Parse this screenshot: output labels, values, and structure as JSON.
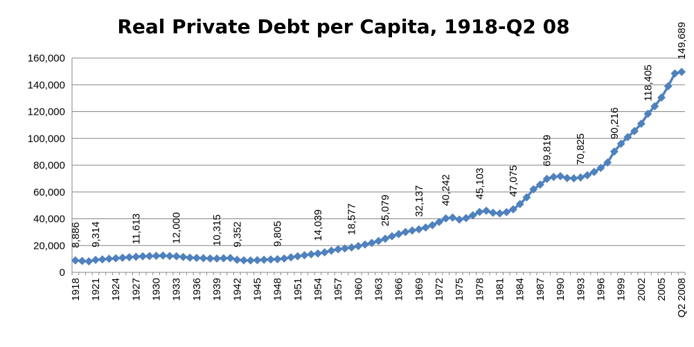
{
  "chart_data": {
    "type": "line",
    "title": "Real Private Debt per Capita, 1918-Q2 08",
    "xlabel": "",
    "ylabel": "",
    "ylim": [
      0,
      160000
    ],
    "yticks": [
      "0",
      "20,000",
      "40,000",
      "60,000",
      "80,000",
      "100,000",
      "120,000",
      "140,000",
      "160,000"
    ],
    "yticks_values": [
      0,
      20000,
      40000,
      60000,
      80000,
      100000,
      120000,
      140000,
      160000
    ],
    "grid": true,
    "legend": "none",
    "marker": "diamond",
    "color": "#4F81BD",
    "xtick_labels": [
      "1918",
      "1921",
      "1924",
      "1927",
      "1930",
      "1933",
      "1936",
      "1939",
      "1942",
      "1945",
      "1948",
      "1951",
      "1954",
      "1957",
      "1960",
      "1963",
      "1966",
      "1969",
      "1972",
      "1975",
      "1978",
      "1981",
      "1984",
      "1987",
      "1990",
      "1993",
      "1996",
      "1999",
      "2002",
      "2005",
      "Q2 2008"
    ],
    "x": [
      "1918",
      "1919",
      "1920",
      "1921",
      "1922",
      "1923",
      "1924",
      "1925",
      "1926",
      "1927",
      "1928",
      "1929",
      "1930",
      "1931",
      "1932",
      "1933",
      "1934",
      "1935",
      "1936",
      "1937",
      "1938",
      "1939",
      "1940",
      "1941",
      "1942",
      "1943",
      "1944",
      "1945",
      "1946",
      "1947",
      "1948",
      "1949",
      "1950",
      "1951",
      "1952",
      "1953",
      "1954",
      "1955",
      "1956",
      "1957",
      "1958",
      "1959",
      "1960",
      "1961",
      "1962",
      "1963",
      "1964",
      "1965",
      "1966",
      "1967",
      "1968",
      "1969",
      "1970",
      "1971",
      "1972",
      "1973",
      "1974",
      "1975",
      "1976",
      "1977",
      "1978",
      "1979",
      "1980",
      "1981",
      "1982",
      "1983",
      "1984",
      "1985",
      "1986",
      "1987",
      "1988",
      "1989",
      "1990",
      "1991",
      "1992",
      "1993",
      "1994",
      "1995",
      "1996",
      "1997",
      "1998",
      "1999",
      "2000",
      "2001",
      "2002",
      "2003",
      "2004",
      "2005",
      "2006",
      "2007",
      "Q2 2008"
    ],
    "values": [
      8886,
      8500,
      8200,
      9314,
      9700,
      10100,
      10500,
      10900,
      11300,
      11613,
      12000,
      12100,
      12300,
      12500,
      12200,
      12000,
      11500,
      11000,
      10800,
      10600,
      10400,
      10315,
      10500,
      10700,
      9352,
      9000,
      8900,
      9100,
      9400,
      9600,
      9805,
      10300,
      11200,
      12000,
      12800,
      13500,
      14039,
      15000,
      16200,
      17200,
      17900,
      18577,
      19600,
      20800,
      22000,
      23400,
      25079,
      27000,
      28600,
      30100,
      31200,
      32137,
      33500,
      35200,
      37600,
      40242,
      40900,
      39400,
      40500,
      42600,
      45103,
      46000,
      44500,
      44000,
      45000,
      47075,
      51000,
      56000,
      62000,
      65500,
      69819,
      71200,
      71800,
      70400,
      70200,
      70825,
      72500,
      75000,
      78000,
      82000,
      90216,
      96000,
      101000,
      105500,
      111000,
      118405,
      124000,
      130500,
      139000,
      148500,
      149689
    ],
    "data_labels": [
      {
        "x": "1918",
        "text": "8,886"
      },
      {
        "x": "1921",
        "text": "9,314"
      },
      {
        "x": "1927",
        "text": "11,613"
      },
      {
        "x": "1933",
        "text": "12,000"
      },
      {
        "x": "1939",
        "text": "10,315"
      },
      {
        "x": "1942",
        "text": "9,352"
      },
      {
        "x": "1948",
        "text": "9,805"
      },
      {
        "x": "1954",
        "text": "14,039"
      },
      {
        "x": "1959",
        "text": "18,577"
      },
      {
        "x": "1964",
        "text": "25,079"
      },
      {
        "x": "1969",
        "text": "32,137"
      },
      {
        "x": "1973",
        "text": "40,242"
      },
      {
        "x": "1978",
        "text": "45,103"
      },
      {
        "x": "1983",
        "text": "47,075"
      },
      {
        "x": "1988",
        "text": "69,819"
      },
      {
        "x": "1993",
        "text": "70,825"
      },
      {
        "x": "1998",
        "text": "90,216"
      },
      {
        "x": "2003",
        "text": "118,405"
      },
      {
        "x": "Q2 2008",
        "text": "149,689"
      }
    ]
  }
}
